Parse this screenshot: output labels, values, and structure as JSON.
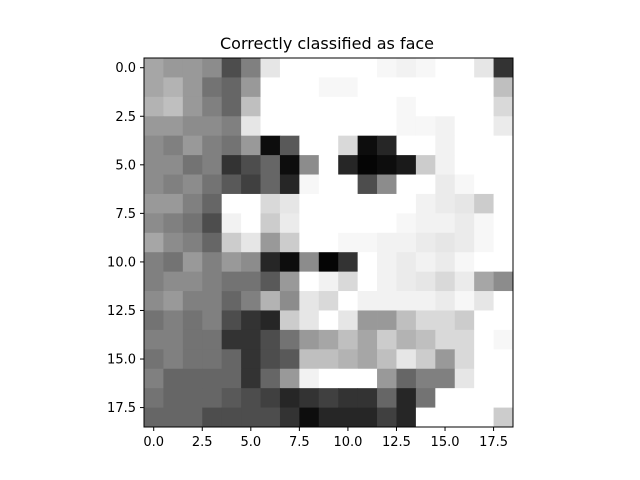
{
  "chart_data": {
    "type": "heatmap",
    "title": "Correctly classified as face",
    "xlabel": "",
    "ylabel": "",
    "xlim": [
      -0.5,
      18.5
    ],
    "ylim": [
      18.5,
      -0.5
    ],
    "colormap": "gray",
    "grid": false,
    "xticks": [
      0.0,
      2.5,
      5.0,
      7.5,
      10.0,
      12.5,
      15.0,
      17.5
    ],
    "yticks": [
      0.0,
      2.5,
      5.0,
      7.5,
      10.0,
      12.5,
      15.0,
      17.5
    ],
    "xtick_labels": [
      "0.0",
      "2.5",
      "5.0",
      "7.5",
      "10.0",
      "12.5",
      "15.0",
      "17.5"
    ],
    "ytick_labels": [
      "0.0",
      "2.5",
      "5.0",
      "7.5",
      "10.0",
      "12.5",
      "15.0",
      "17.5"
    ],
    "values": [
      [
        0.65,
        0.6,
        0.6,
        0.55,
        0.3,
        0.5,
        0.9,
        1.0,
        1.0,
        1.0,
        1.0,
        1.0,
        0.97,
        0.95,
        0.97,
        1.0,
        1.0,
        0.9,
        0.2
      ],
      [
        0.65,
        0.7,
        0.6,
        0.45,
        0.4,
        0.6,
        1.0,
        1.0,
        1.0,
        0.97,
        0.97,
        1.0,
        1.0,
        1.0,
        1.0,
        1.0,
        1.0,
        1.0,
        0.75
      ],
      [
        0.7,
        0.75,
        0.6,
        0.5,
        0.4,
        0.75,
        1.0,
        1.0,
        1.0,
        1.0,
        1.0,
        1.0,
        1.0,
        0.97,
        1.0,
        1.0,
        1.0,
        1.0,
        0.85
      ],
      [
        0.6,
        0.6,
        0.55,
        0.55,
        0.5,
        0.9,
        1.0,
        1.0,
        1.0,
        1.0,
        1.0,
        1.0,
        1.0,
        0.97,
        0.97,
        0.95,
        1.0,
        1.0,
        0.92
      ],
      [
        0.55,
        0.5,
        0.6,
        0.5,
        0.45,
        0.6,
        0.05,
        0.35,
        1.0,
        1.0,
        0.85,
        0.05,
        0.15,
        1.0,
        1.0,
        0.95,
        1.0,
        1.0,
        1.0
      ],
      [
        0.55,
        0.55,
        0.45,
        0.5,
        0.2,
        0.3,
        0.4,
        0.05,
        0.55,
        1.0,
        0.15,
        0.02,
        0.05,
        0.1,
        0.8,
        0.95,
        1.0,
        1.0,
        1.0
      ],
      [
        0.55,
        0.5,
        0.55,
        0.45,
        0.35,
        0.25,
        0.4,
        0.15,
        0.97,
        1.0,
        1.0,
        0.3,
        0.55,
        1.0,
        1.0,
        0.92,
        0.97,
        1.0,
        1.0
      ],
      [
        0.6,
        0.6,
        0.5,
        0.4,
        1.0,
        1.0,
        0.85,
        0.9,
        1.0,
        1.0,
        1.0,
        1.0,
        1.0,
        1.0,
        0.95,
        0.92,
        0.9,
        0.8,
        1.0
      ],
      [
        0.55,
        0.5,
        0.45,
        0.3,
        0.95,
        1.0,
        0.8,
        0.92,
        1.0,
        1.0,
        1.0,
        1.0,
        1.0,
        0.97,
        0.95,
        0.95,
        0.92,
        0.97,
        1.0
      ],
      [
        0.65,
        0.55,
        0.5,
        0.4,
        0.8,
        0.9,
        0.6,
        0.8,
        1.0,
        1.0,
        0.97,
        0.97,
        0.95,
        0.95,
        0.92,
        0.9,
        0.92,
        0.97,
        1.0
      ],
      [
        0.5,
        0.45,
        0.6,
        0.5,
        0.6,
        0.55,
        0.15,
        0.05,
        0.55,
        0.02,
        0.2,
        1.0,
        0.95,
        0.92,
        0.95,
        0.92,
        0.97,
        1.0,
        1.0
      ],
      [
        0.5,
        0.55,
        0.55,
        0.5,
        0.45,
        0.45,
        0.35,
        0.6,
        1.0,
        0.95,
        0.85,
        1.0,
        0.95,
        0.92,
        0.9,
        0.85,
        0.92,
        0.65,
        0.55
      ],
      [
        0.55,
        0.6,
        0.5,
        0.5,
        0.4,
        0.5,
        0.7,
        0.55,
        0.9,
        0.85,
        1.0,
        0.95,
        0.95,
        0.95,
        0.95,
        0.92,
        0.97,
        0.9,
        1.0
      ],
      [
        0.45,
        0.5,
        0.45,
        0.5,
        0.3,
        0.2,
        0.15,
        0.8,
        0.9,
        1.0,
        0.9,
        0.6,
        0.6,
        0.75,
        0.85,
        0.85,
        0.8,
        1.0,
        1.0
      ],
      [
        0.5,
        0.5,
        0.45,
        0.45,
        0.2,
        0.2,
        0.3,
        0.45,
        0.6,
        0.65,
        0.75,
        0.65,
        0.8,
        0.7,
        0.75,
        0.85,
        0.85,
        1.0,
        0.97
      ],
      [
        0.45,
        0.5,
        0.45,
        0.45,
        0.4,
        0.2,
        0.3,
        0.35,
        0.75,
        0.75,
        0.7,
        0.65,
        0.75,
        0.9,
        0.8,
        0.6,
        0.85,
        1.0,
        1.0
      ],
      [
        0.5,
        0.4,
        0.4,
        0.4,
        0.4,
        0.2,
        0.4,
        0.6,
        0.95,
        1.0,
        1.0,
        1.0,
        0.6,
        0.4,
        0.5,
        0.5,
        0.9,
        1.0,
        1.0
      ],
      [
        0.45,
        0.4,
        0.4,
        0.4,
        0.35,
        0.3,
        0.25,
        0.15,
        0.2,
        0.25,
        0.2,
        0.2,
        0.4,
        0.15,
        0.45,
        1.0,
        1.0,
        1.0,
        1.0
      ],
      [
        0.4,
        0.4,
        0.4,
        0.3,
        0.3,
        0.3,
        0.3,
        0.2,
        0.05,
        0.15,
        0.15,
        0.15,
        0.25,
        0.15,
        1.0,
        1.0,
        1.0,
        1.0,
        0.8
      ]
    ]
  }
}
